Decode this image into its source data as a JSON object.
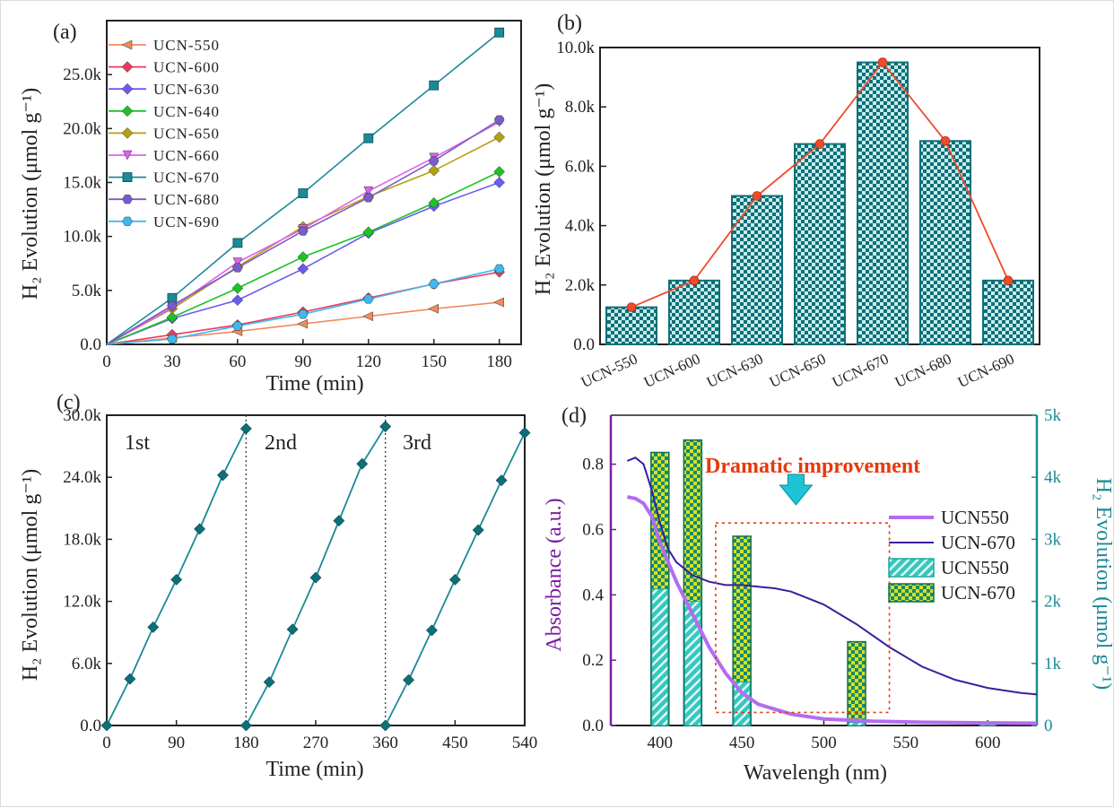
{
  "colors": {
    "teal": "#1a8a96",
    "teal_dark": "#0d6f78",
    "orange": "#f08050",
    "red_line": "#ee4b2b",
    "purple": "#b36cf0",
    "purple_dark": "#3c1d9e",
    "purple_label": "#7a1fa2",
    "dramatic": "#e8380d",
    "yellow_pattern": "#e6e02a",
    "cyan_arrow": "#1fc3d6"
  },
  "chart_data": [
    {
      "id": "a",
      "panel_label": "(a)",
      "type": "line",
      "xlabel": "Time (min)",
      "ylabel": "H₂ Evolution (μmol g⁻¹)",
      "xlim": [
        0,
        190
      ],
      "ylim": [
        0,
        30000
      ],
      "xticks": [
        "0",
        "30",
        "60",
        "90",
        "120",
        "150",
        "180"
      ],
      "yticks": [
        "0.0",
        "5.0k",
        "10.0k",
        "15.0k",
        "20.0k",
        "25.0k"
      ],
      "x": [
        0,
        30,
        60,
        90,
        120,
        150,
        180
      ],
      "series": [
        {
          "name": "UCN-550",
          "color": "#f08a5d",
          "marker": "tri-left",
          "values": [
            0,
            600,
            1200,
            1900,
            2600,
            3300,
            3900
          ]
        },
        {
          "name": "UCN-600",
          "color": "#ee3a5c",
          "marker": "diamond",
          "values": [
            0,
            900,
            1800,
            3000,
            4300,
            5600,
            6700
          ]
        },
        {
          "name": "UCN-630",
          "color": "#6a5cf0",
          "marker": "diamond",
          "values": [
            0,
            2400,
            4100,
            7000,
            10300,
            12800,
            15000
          ]
        },
        {
          "name": "UCN-640",
          "color": "#1cc228",
          "marker": "diamond",
          "values": [
            0,
            2500,
            5200,
            8100,
            10400,
            13100,
            16000
          ]
        },
        {
          "name": "UCN-650",
          "color": "#b5a00f",
          "marker": "diamond",
          "values": [
            0,
            3300,
            7200,
            10900,
            13700,
            16100,
            19200
          ]
        },
        {
          "name": "UCN-660",
          "color": "#e060f0",
          "marker": "tri-down",
          "values": [
            0,
            3400,
            7600,
            10700,
            14200,
            17300,
            20600
          ]
        },
        {
          "name": "UCN-670",
          "color": "#1b8a98",
          "marker": "square",
          "values": [
            0,
            4300,
            9400,
            14000,
            19100,
            24000,
            28900
          ]
        },
        {
          "name": "UCN-680",
          "color": "#7a5cc8",
          "marker": "hexagon",
          "values": [
            0,
            3600,
            7100,
            10500,
            13600,
            17000,
            20800
          ]
        },
        {
          "name": "UCN-690",
          "color": "#3fb8f0",
          "marker": "hexagon",
          "values": [
            0,
            500,
            1700,
            2800,
            4200,
            5600,
            7000
          ]
        }
      ],
      "legend": [
        "UCN-550",
        "UCN-600",
        "UCN-630",
        "UCN-640",
        "UCN-650",
        "UCN-660",
        "UCN-670",
        "UCN-680",
        "UCN-690"
      ],
      "legend_display": [
        "UCN-550",
        "UCN-600",
        "UCN-630",
        "UCN-640",
        "UCN-650",
        "UCN-660",
        "UCN-670",
        "UCN-680",
        "UCN-690"
      ]
    },
    {
      "id": "b",
      "panel_label": "(b)",
      "type": "bar",
      "ylabel": "H₂ Evolution (μmol g⁻¹)",
      "ylim": [
        0,
        10000
      ],
      "yticks": [
        "0.0",
        "2.0k",
        "4.0k",
        "6.0k",
        "8.0k",
        "10.0k"
      ],
      "categories": [
        "UCN-550",
        "UCN-600",
        "UCN-630",
        "UCN-650",
        "UCN-670",
        "UCN-680",
        "UCN-690"
      ],
      "category_labels": [
        "UCN-550",
        "UCN-600",
        "UCN-630",
        "UCN-650",
        "UCN-670",
        "UCN-680",
        "UCN-690"
      ],
      "values": [
        1250,
        2150,
        5000,
        6750,
        9500,
        6850,
        2150
      ]
    },
    {
      "id": "c",
      "panel_label": "(c)",
      "type": "line",
      "xlabel": "Time (min)",
      "ylabel": "H₂ Evolution (μmol g⁻¹)",
      "xlim": [
        0,
        540
      ],
      "ylim": [
        0,
        30000
      ],
      "xticks": [
        "0",
        "90",
        "180",
        "270",
        "360",
        "450",
        "540"
      ],
      "yticks": [
        "0.0",
        "6.0k",
        "12.0k",
        "18.0k",
        "24.0k",
        "30.0k"
      ],
      "cycle_labels": [
        "1st",
        "2nd",
        "3rd"
      ],
      "cycle_dividers": [
        180,
        360
      ],
      "series": [
        {
          "name": "cycle-1",
          "x": [
            0,
            30,
            60,
            90,
            120,
            150,
            180
          ],
          "values": [
            0,
            4500,
            9500,
            14100,
            19000,
            24200,
            28700
          ]
        },
        {
          "name": "cycle-2",
          "x": [
            180,
            210,
            240,
            270,
            300,
            330,
            360
          ],
          "values": [
            0,
            4200,
            9300,
            14300,
            19800,
            25300,
            28900
          ]
        },
        {
          "name": "cycle-3",
          "x": [
            360,
            390,
            420,
            450,
            480,
            510,
            540
          ],
          "values": [
            0,
            4400,
            9200,
            14100,
            18900,
            23700,
            28300
          ]
        }
      ]
    },
    {
      "id": "d",
      "panel_label": "(d)",
      "type": "line",
      "xlabel": "Wavelengh (nm)",
      "ylabel": "Absorbance (a.u.)",
      "ylabel_right": "H₂ Evolution (μmol g⁻¹)",
      "xlim": [
        370,
        630
      ],
      "ylim": [
        0,
        0.95
      ],
      "ylim_right": [
        0,
        5
      ],
      "xticks": [
        "400",
        "450",
        "500",
        "550",
        "600"
      ],
      "yticks": [
        "0.0",
        "0.2",
        "0.4",
        "0.6",
        "0.8"
      ],
      "yticks_right": [
        "0",
        "1k",
        "2k",
        "3k",
        "4k",
        "5k"
      ],
      "annotation": "Dramatic improvement",
      "series": [
        {
          "name": "UCN550",
          "type": "line",
          "x": [
            380,
            385,
            390,
            395,
            400,
            410,
            420,
            430,
            440,
            450,
            460,
            480,
            500,
            530,
            560,
            600,
            630
          ],
          "values": [
            0.7,
            0.695,
            0.68,
            0.64,
            0.56,
            0.44,
            0.34,
            0.24,
            0.16,
            0.1,
            0.065,
            0.035,
            0.02,
            0.013,
            0.01,
            0.008,
            0.007
          ]
        },
        {
          "name": "UCN-670",
          "type": "line",
          "x": [
            380,
            385,
            390,
            395,
            400,
            405,
            410,
            420,
            430,
            440,
            450,
            460,
            470,
            480,
            500,
            520,
            540,
            560,
            580,
            600,
            620,
            630
          ],
          "values": [
            0.81,
            0.82,
            0.8,
            0.72,
            0.62,
            0.54,
            0.5,
            0.46,
            0.44,
            0.43,
            0.43,
            0.425,
            0.42,
            0.41,
            0.37,
            0.31,
            0.24,
            0.18,
            0.14,
            0.115,
            0.1,
            0.095
          ]
        }
      ],
      "bars": {
        "wavelengths": [
          400,
          420,
          450,
          520,
          600
        ],
        "UCN550": [
          2200,
          2000,
          700,
          50,
          30
        ],
        "UCN-670": [
          4400,
          4600,
          3050,
          1350,
          0
        ]
      },
      "legend": [
        "UCN550",
        "UCN-670",
        "UCN550",
        "UCN-670"
      ]
    }
  ]
}
